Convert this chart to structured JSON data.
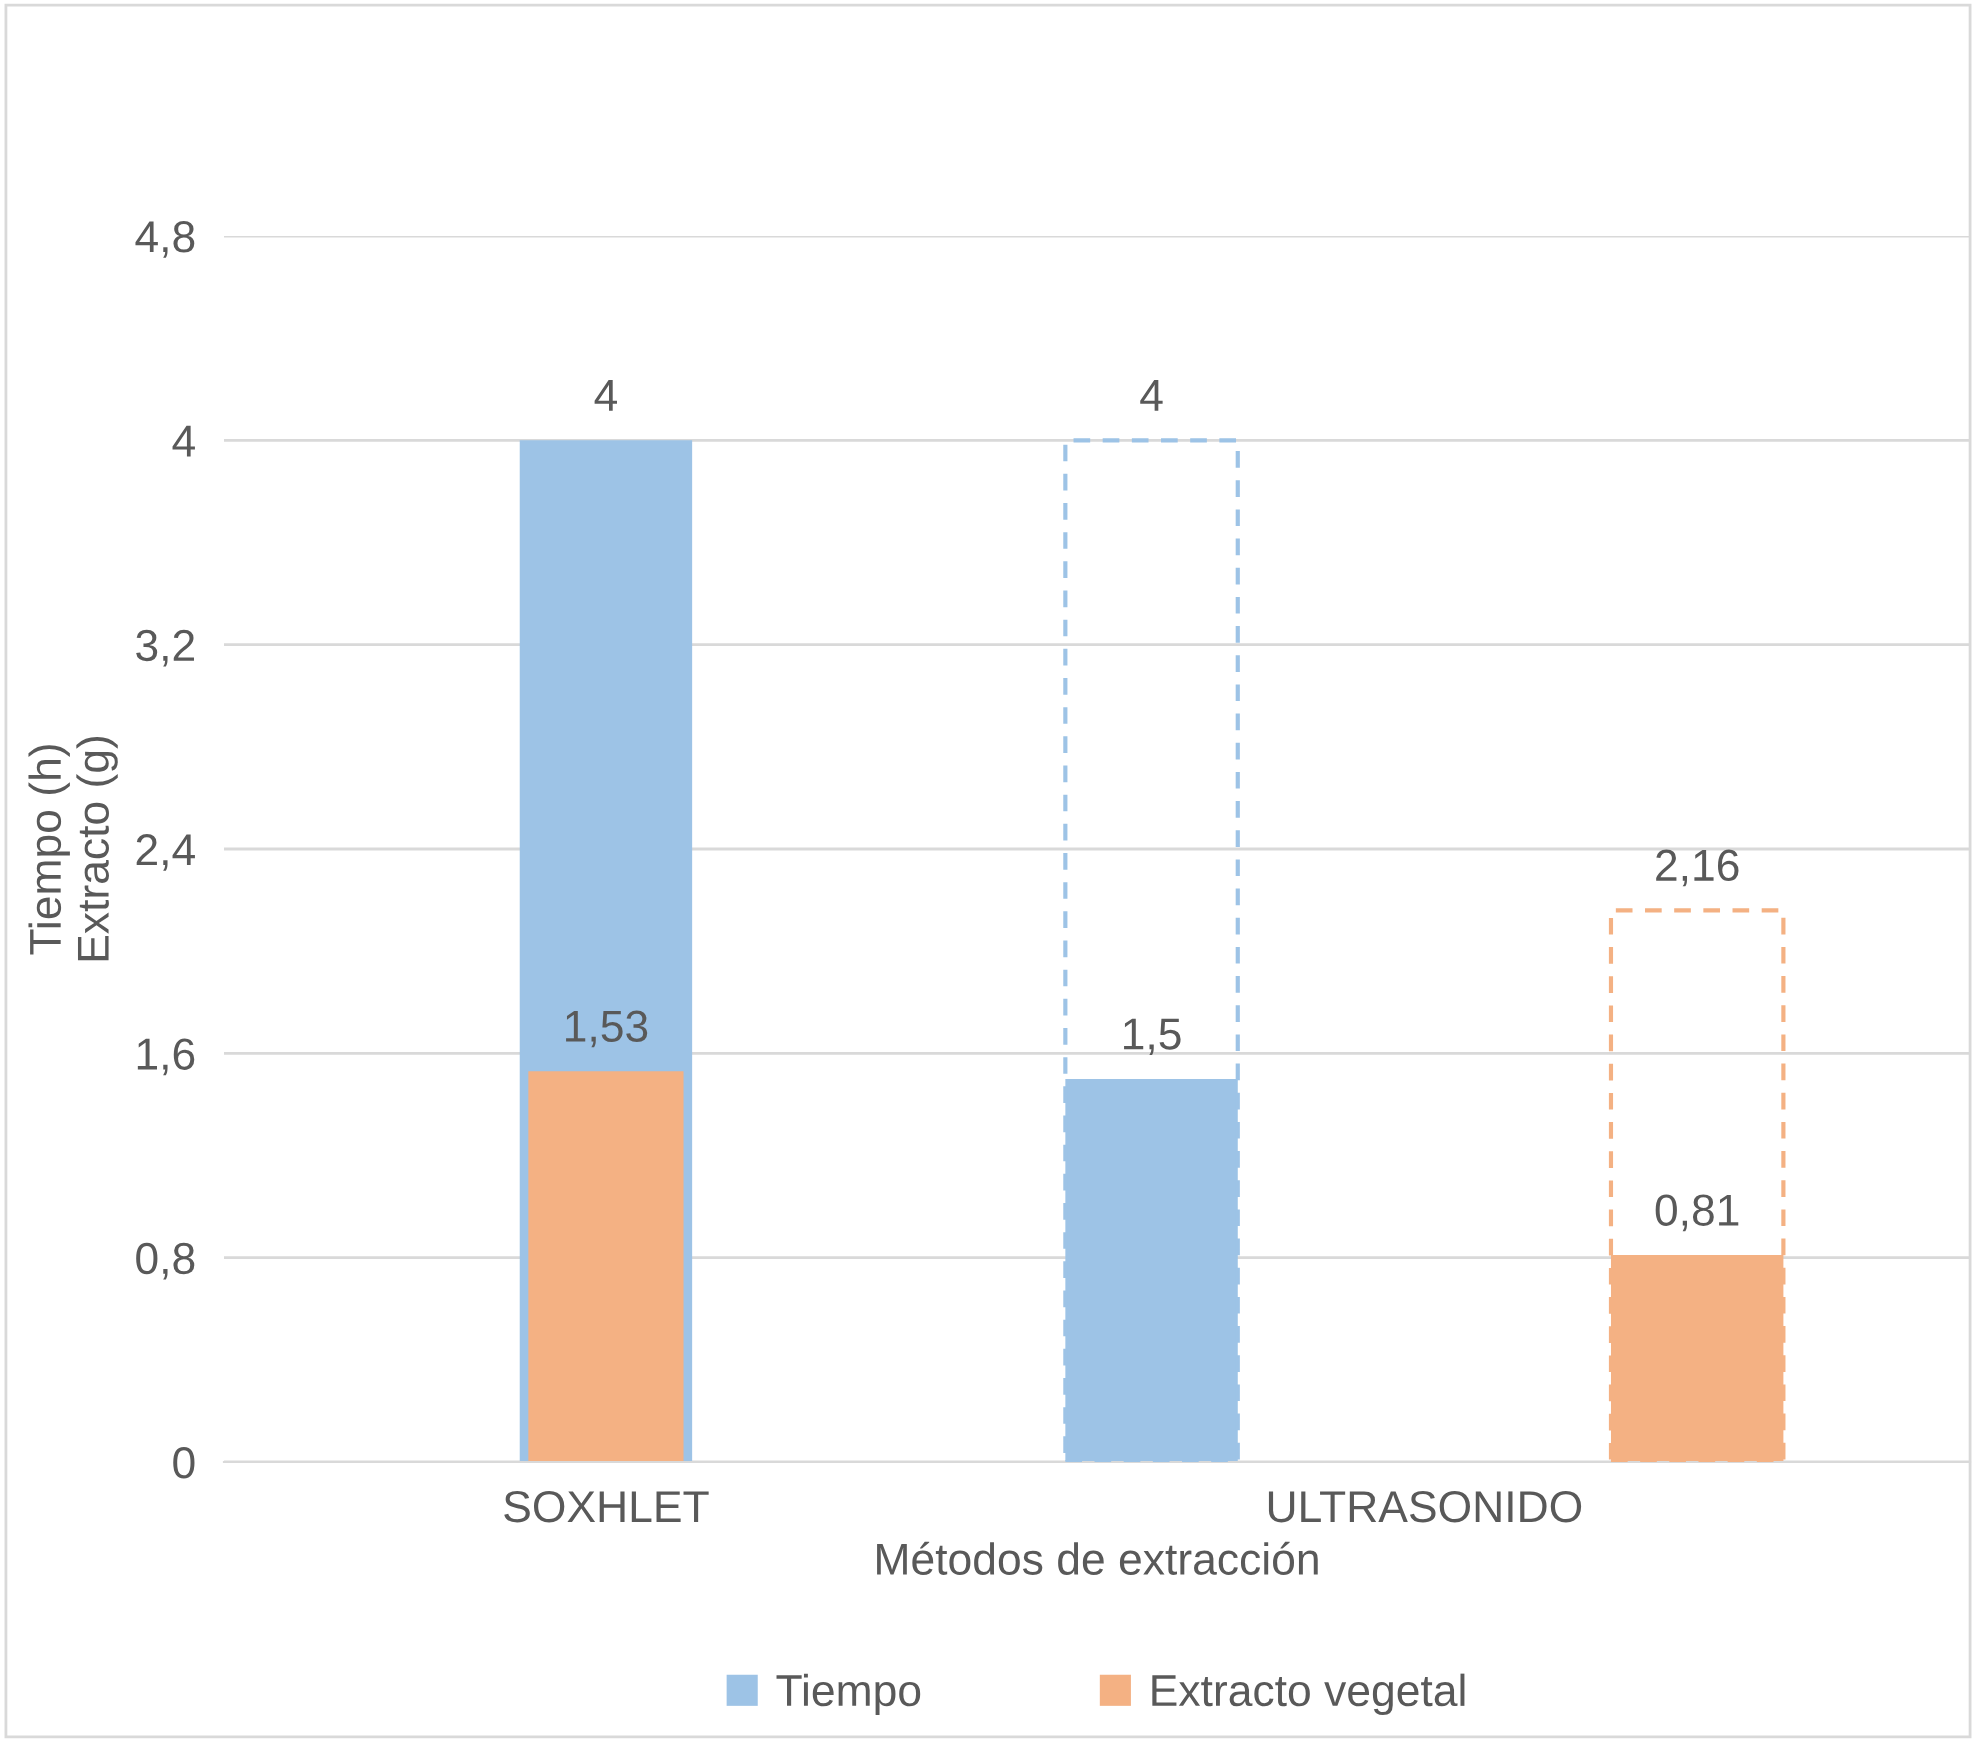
{
  "chart_data": {
    "type": "bar",
    "categories": [
      "SOXHLET",
      "ULTRASONIDO"
    ],
    "xlabel": "Métodos de extracción",
    "ylabel": "Tiempo (h)\nExtracto (g)",
    "series": [
      {
        "name": "Tiempo",
        "color": "#9dc3e6",
        "values": [
          4,
          1.5
        ],
        "value_labels": [
          "4",
          "1,5"
        ]
      },
      {
        "name": "Extracto vegetal",
        "color": "#f4b183",
        "values": [
          1.53,
          0.81
        ],
        "value_labels": [
          "1,53",
          "0,81"
        ]
      },
      {
        "color": "#9dc3e6",
        "values": [
          null,
          4
        ],
        "line_style": "dashed",
        "value_labels": [
          null,
          "4"
        ]
      },
      {
        "color": "#f4b183",
        "values": [
          null,
          2.16
        ],
        "line_style": "dashed",
        "value_labels": [
          null,
          "2,16"
        ]
      }
    ],
    "ylim": [
      0,
      4.8
    ],
    "yticks": [
      0,
      {
        "value": 0.8,
        "label": "0,8"
      },
      {
        "value": 1.6,
        "label": "1,6"
      },
      {
        "value": 2.4,
        "label": "2,4"
      },
      {
        "value": 3.2,
        "label": "3,2"
      },
      4,
      {
        "value": 4.8,
        "label": "4,8"
      }
    ],
    "grid": "y",
    "legend": "bottom"
  }
}
